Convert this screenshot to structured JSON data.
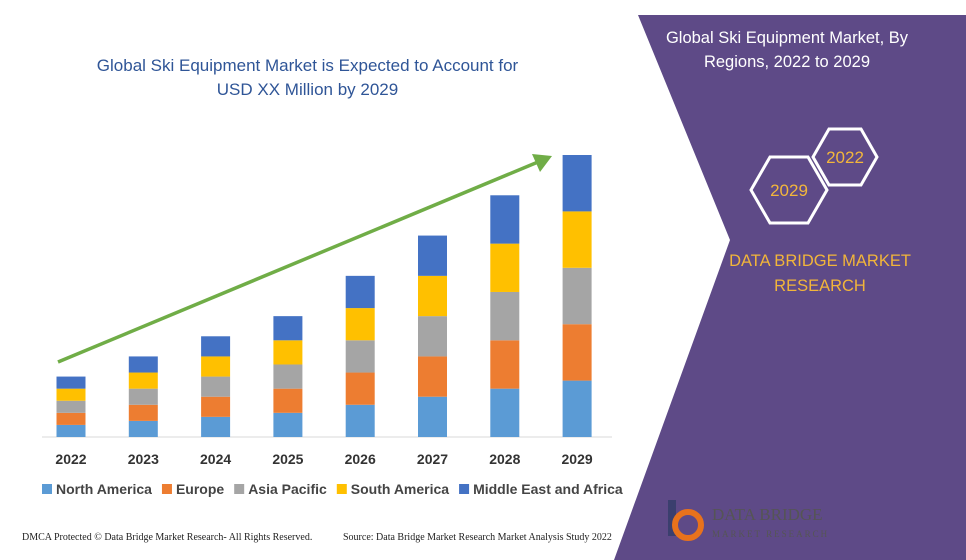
{
  "chart_data": {
    "type": "bar",
    "stacked": true,
    "title": "Global Ski Equipment Market is Expected to Account for USD XX Million by 2029",
    "categories": [
      "2022",
      "2023",
      "2024",
      "2025",
      "2026",
      "2027",
      "2028",
      "2029"
    ],
    "series": [
      {
        "name": "North America",
        "color": "#5b9bd5",
        "values": [
          12,
          16,
          20,
          24,
          32,
          40,
          48,
          56
        ]
      },
      {
        "name": "Europe",
        "color": "#ed7d31",
        "values": [
          12,
          16,
          20,
          24,
          32,
          40,
          48,
          56
        ]
      },
      {
        "name": "Asia Pacific",
        "color": "#a5a5a5",
        "values": [
          12,
          16,
          20,
          24,
          32,
          40,
          48,
          56
        ]
      },
      {
        "name": "South America",
        "color": "#ffc000",
        "values": [
          12,
          16,
          20,
          24,
          32,
          40,
          48,
          56
        ]
      },
      {
        "name": "Middle East and Africa",
        "color": "#4472c4",
        "values": [
          12,
          16,
          20,
          24,
          32,
          40,
          48,
          56
        ]
      }
    ]
  },
  "panel": {
    "title": "Global Ski Equipment Market, By Regions, 2022 to 2029",
    "hexagons": [
      "2022",
      "2029"
    ],
    "brand": [
      "DATA BRIDGE MARKET",
      "RESEARCH"
    ]
  },
  "logo": {
    "name": "DATA BRIDGE",
    "sub": "MARKET RESEARCH"
  },
  "footer": [
    "DMCA Protected © Data Bridge Market Research- All Rights Reserved.",
    "Source: Data Bridge Market Research Market Analysis Study 2022"
  ]
}
